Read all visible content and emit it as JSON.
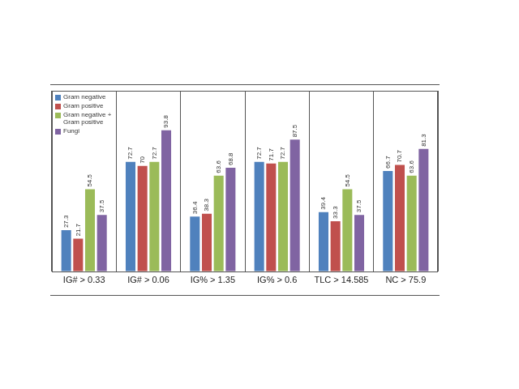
{
  "chart_data": {
    "type": "bar",
    "categories": [
      "IG# > 0.33",
      "IG# > 0.06",
      "IG% > 1.35",
      "IG% > 0.6",
      "TLC > 14.585",
      "NC > 75.9"
    ],
    "series": [
      {
        "name": "Gram negative",
        "color": "#4f81bd",
        "values": [
          27.3,
          72.7,
          36.4,
          72.7,
          39.4,
          66.7
        ]
      },
      {
        "name": "Gram positive",
        "color": "#c0504d",
        "values": [
          21.7,
          70,
          38.3,
          71.7,
          33.3,
          70.7
        ]
      },
      {
        "name": "Gram negative + Gram positive",
        "color": "#9bbb59",
        "values": [
          54.5,
          72.7,
          63.6,
          72.7,
          54.5,
          63.6
        ]
      },
      {
        "name": "Fungi",
        "color": "#8064a2",
        "values": [
          37.5,
          93.8,
          68.8,
          87.5,
          37.5,
          81.3
        ]
      }
    ],
    "ylim": [
      0,
      120
    ],
    "grid": true,
    "legend": "upper left",
    "data_labels": true,
    "tick_labels": "x"
  }
}
